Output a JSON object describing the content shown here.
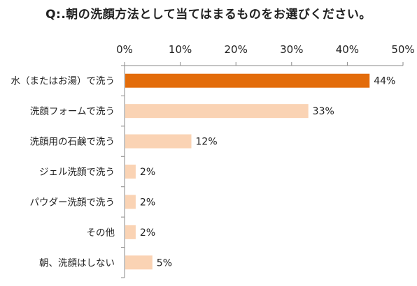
{
  "chart_data": {
    "type": "bar",
    "orientation": "horizontal",
    "title": "Q:.朝の洗顔方法として当てはまるものをお選びください。",
    "categories": [
      "水（またはお湯）で洗う",
      "洗顔フォームで洗う",
      "洗顔用の石鹸で洗う",
      "ジェル洗顔で洗う",
      "パウダー洗顔で洗う",
      "その他",
      "朝、洗顔はしない"
    ],
    "values": [
      44,
      33,
      12,
      2,
      2,
      2,
      5
    ],
    "value_labels": [
      "44%",
      "33%",
      "12%",
      "2%",
      "2%",
      "2%",
      "5%"
    ],
    "xlim": [
      0,
      50
    ],
    "ticks": [
      0,
      10,
      20,
      30,
      40,
      50
    ],
    "tick_labels": [
      "0%",
      "10%",
      "20%",
      "30%",
      "40%",
      "50%"
    ],
    "xaxis_position": "top",
    "grid": false,
    "colors": {
      "highlight": "#E36C0A",
      "default": "#FAD3B4",
      "axis": "#888888"
    },
    "highlight_index": 0
  }
}
